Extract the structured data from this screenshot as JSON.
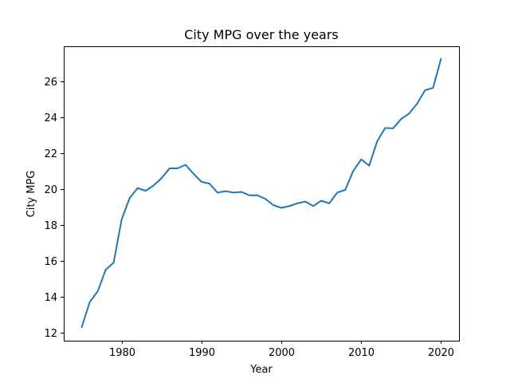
{
  "chart_data": {
    "type": "line",
    "title": "City MPG over the years",
    "xlabel": "Year",
    "ylabel": "City MPG",
    "xlim": [
      1972.75,
      2022.25
    ],
    "ylim": [
      11.55,
      27.95
    ],
    "xticks": [
      1980,
      1990,
      2000,
      2010,
      2020
    ],
    "yticks": [
      12,
      14,
      16,
      18,
      20,
      22,
      24,
      26
    ],
    "grid": false,
    "series": [
      {
        "color": "#1f77b4",
        "x": [
          1975,
          1976,
          1977,
          1978,
          1979,
          1980,
          1981,
          1982,
          1983,
          1984,
          1985,
          1986,
          1987,
          1988,
          1989,
          1990,
          1991,
          1992,
          1993,
          1994,
          1995,
          1996,
          1997,
          1998,
          1999,
          2000,
          2001,
          2002,
          2003,
          2004,
          2005,
          2006,
          2007,
          2008,
          2009,
          2010,
          2011,
          2012,
          2013,
          2014,
          2015,
          2016,
          2017,
          2018,
          2019,
          2020
        ],
        "y": [
          12.3,
          13.7,
          14.3,
          15.5,
          15.9,
          18.3,
          19.5,
          20.05,
          19.9,
          20.2,
          20.6,
          21.15,
          21.15,
          21.35,
          20.85,
          20.4,
          20.3,
          19.8,
          19.88,
          19.8,
          19.84,
          19.65,
          19.65,
          19.45,
          19.1,
          18.95,
          19.05,
          19.2,
          19.3,
          19.05,
          19.35,
          19.2,
          19.8,
          19.95,
          21.0,
          21.65,
          21.3,
          22.65,
          23.4,
          23.38,
          23.9,
          24.2,
          24.75,
          25.5,
          25.63,
          27.25
        ]
      }
    ]
  }
}
